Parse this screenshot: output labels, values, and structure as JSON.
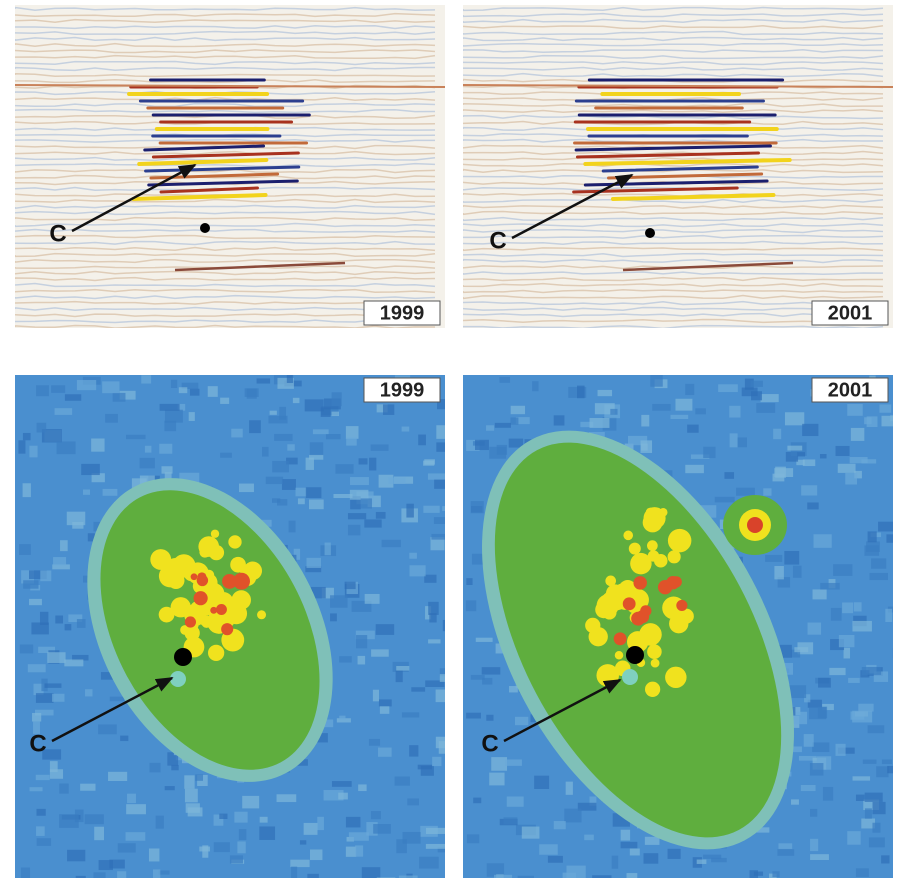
{
  "panels": [
    {
      "label": "C",
      "year": "1999"
    },
    {
      "label": "C",
      "year": "2001"
    },
    {
      "label": "C",
      "year": "1999"
    },
    {
      "label": "C",
      "year": "2001"
    }
  ]
}
